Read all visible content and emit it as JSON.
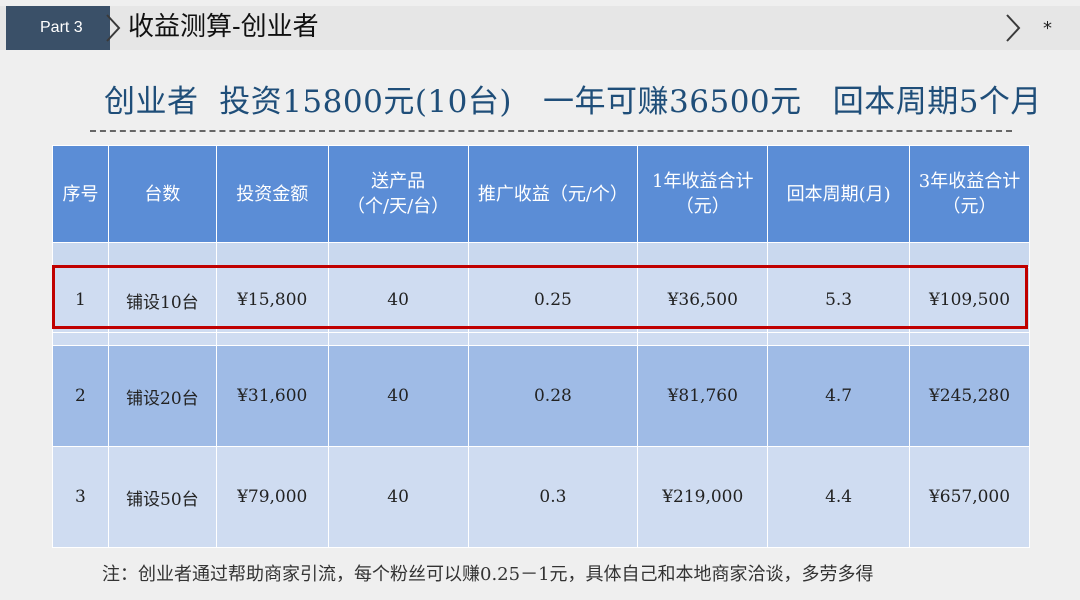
{
  "header": {
    "part_label": "Part 3",
    "title": "收益测算-创业者",
    "star": "*"
  },
  "headline": "创业者  投资15800元(10台)   一年可赚36500元   回本周期5个月",
  "table": {
    "headers": [
      {
        "lines": [
          "序号"
        ]
      },
      {
        "lines": [
          "台数"
        ]
      },
      {
        "lines": [
          "投资金额"
        ]
      },
      {
        "lines": [
          "送产品",
          "（个/天/台）"
        ]
      },
      {
        "lines": [
          "推广收益（元/个）"
        ]
      },
      {
        "lines": [
          "1年收益合计",
          "（元）"
        ]
      },
      {
        "lines": [
          "回本周期(月)"
        ]
      },
      {
        "lines": [
          "3年收益合计",
          "（元）"
        ]
      }
    ],
    "rows": [
      [
        "1",
        "铺设10台",
        "¥15,800",
        "40",
        "0.25",
        "¥36,500",
        "5.3",
        "¥109,500"
      ],
      [
        "2",
        "铺设20台",
        "¥31,600",
        "40",
        "0.28",
        "¥81,760",
        "4.7",
        "¥245,280"
      ],
      [
        "3",
        "铺设50台",
        "¥79,000",
        "40",
        "0.3",
        "¥219,000",
        "4.4",
        "¥657,000"
      ]
    ]
  },
  "note": "注：创业者通过帮助商家引流，每个粉丝可以赚0.25－1元，具体自己和本地商家洽谈，多劳多得",
  "colors": {
    "header_badge": "#3a5068",
    "headline": "#1f4e79",
    "table_header": "#5b8dd6",
    "row_light": "#cfdcf1",
    "row_dark": "#9fbbe6",
    "highlight_border": "#c00000"
  }
}
